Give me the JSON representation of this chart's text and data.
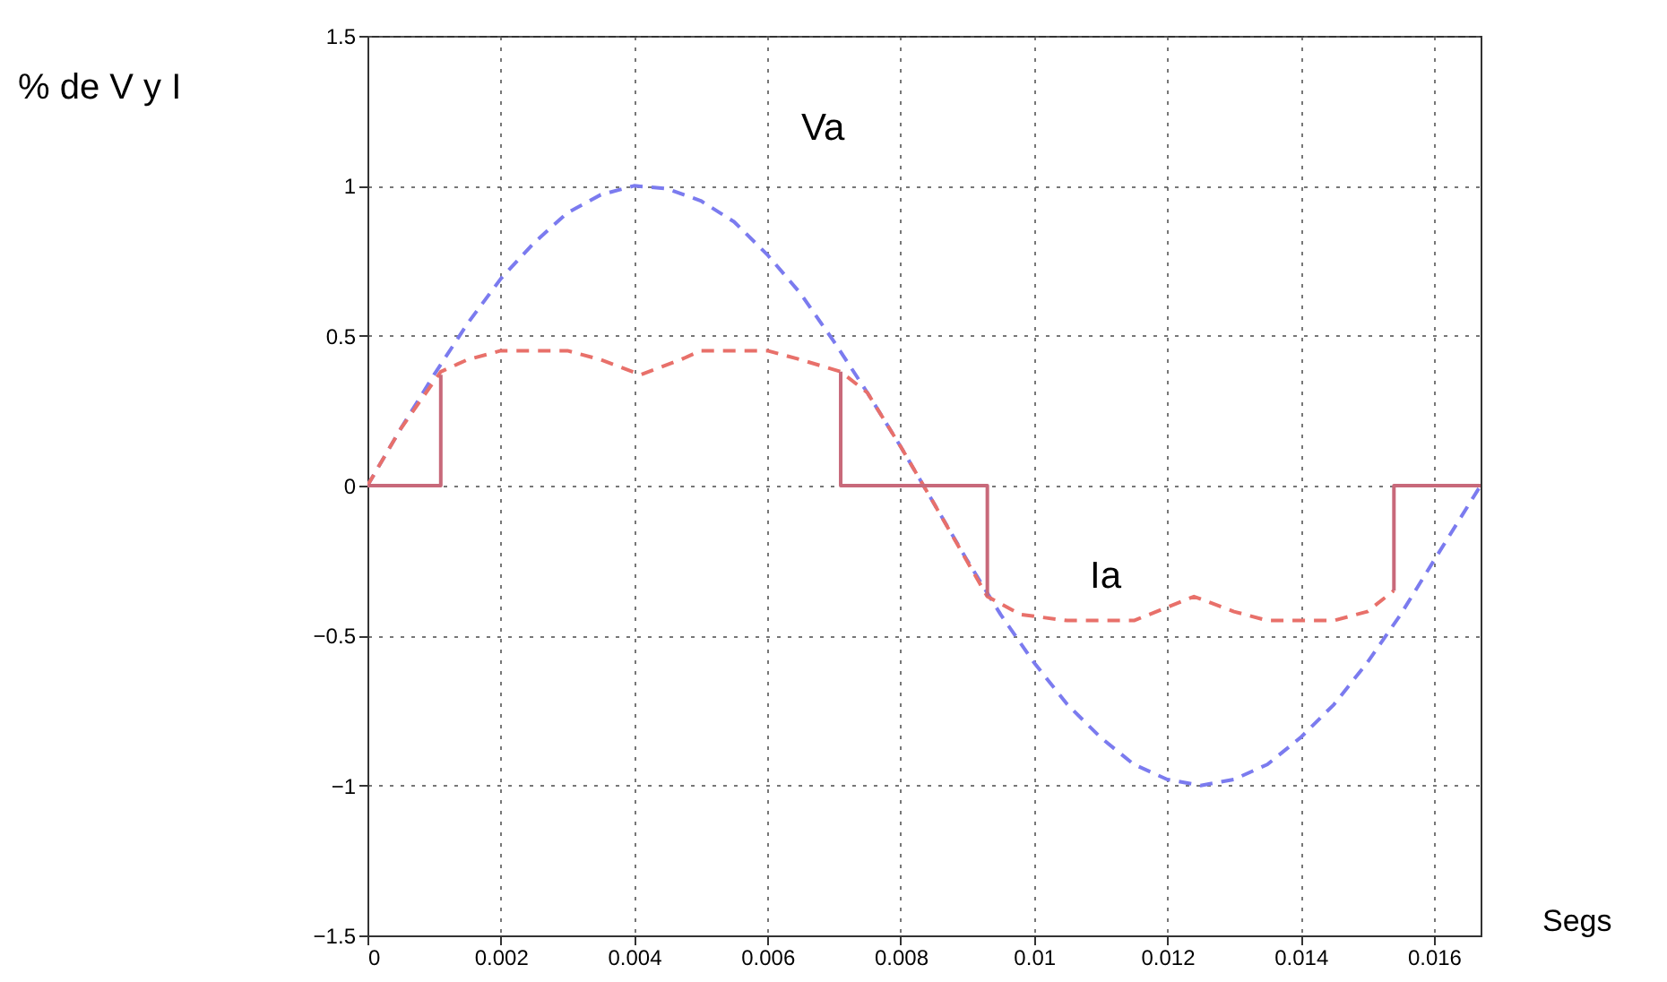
{
  "chart_data": {
    "type": "line",
    "xlabel": "Segs",
    "xlim": [
      0,
      0.0167
    ],
    "xticks": [
      0,
      0.002,
      0.004,
      0.006,
      0.008,
      0.01,
      0.012,
      0.014,
      0.016
    ],
    "ylim": [
      -1.5,
      1.5
    ],
    "yticks": [
      -1.5,
      -1,
      -0.5,
      0,
      0.5,
      1,
      1.5
    ],
    "grid": true,
    "annotations": [
      "% de V y I",
      "Va",
      "Ia"
    ],
    "series": [
      {
        "color": "#7b7bef",
        "line_style": "dashed",
        "x": [
          0,
          0.0005,
          0.001,
          0.0015,
          0.002,
          0.0025,
          0.003,
          0.0035,
          0.004,
          0.0045,
          0.005,
          0.0055,
          0.006,
          0.0065,
          0.007,
          0.0075,
          0.008,
          0.0085,
          0.009,
          0.0095,
          0.01,
          0.0105,
          0.011,
          0.0115,
          0.012,
          0.0125,
          0.013,
          0.0135,
          0.014,
          0.0145,
          0.015,
          0.0155,
          0.016,
          0.0167
        ],
        "values": [
          0,
          0.19,
          0.37,
          0.54,
          0.69,
          0.81,
          0.91,
          0.97,
          1,
          0.99,
          0.95,
          0.88,
          0.77,
          0.64,
          0.48,
          0.31,
          0.13,
          -0.06,
          -0.25,
          -0.43,
          -0.59,
          -0.73,
          -0.84,
          -0.93,
          -0.98,
          -1,
          -0.98,
          -0.93,
          -0.84,
          -0.73,
          -0.59,
          -0.43,
          -0.25,
          0
        ]
      },
      {
        "color": "#e8706a",
        "line_style": "dashed",
        "x": [
          0,
          0.0005,
          0.0011,
          0.0015,
          0.002,
          0.003,
          0.0035,
          0.0041,
          0.0047,
          0.005,
          0.006,
          0.0065,
          0.0071,
          0.0075,
          0.008,
          0.0085,
          0.0093,
          0.0098,
          0.0105,
          0.0115,
          0.0124,
          0.013,
          0.0135,
          0.0145,
          0.015,
          0.0154
        ],
        "values": [
          0,
          0.19,
          0.38,
          0.42,
          0.45,
          0.45,
          0.42,
          0.37,
          0.42,
          0.45,
          0.45,
          0.42,
          0.38,
          0.31,
          0.13,
          -0.06,
          -0.37,
          -0.43,
          -0.45,
          -0.45,
          -0.37,
          -0.42,
          -0.45,
          -0.45,
          -0.42,
          -0.35
        ]
      },
      {
        "color": "#c8697a",
        "line_style": "solid",
        "x": [
          0,
          0.0011,
          0.0011
        ],
        "values": [
          0,
          0,
          0.37
        ]
      },
      {
        "color": "#c8697a",
        "line_style": "solid",
        "x": [
          0.0071,
          0.0071,
          0.0093,
          0.0093
        ],
        "values": [
          0.38,
          0,
          0,
          -0.37
        ]
      },
      {
        "color": "#c8697a",
        "line_style": "solid",
        "x": [
          0.0154,
          0.0154,
          0.0167
        ],
        "values": [
          -0.35,
          0,
          0
        ]
      }
    ]
  }
}
